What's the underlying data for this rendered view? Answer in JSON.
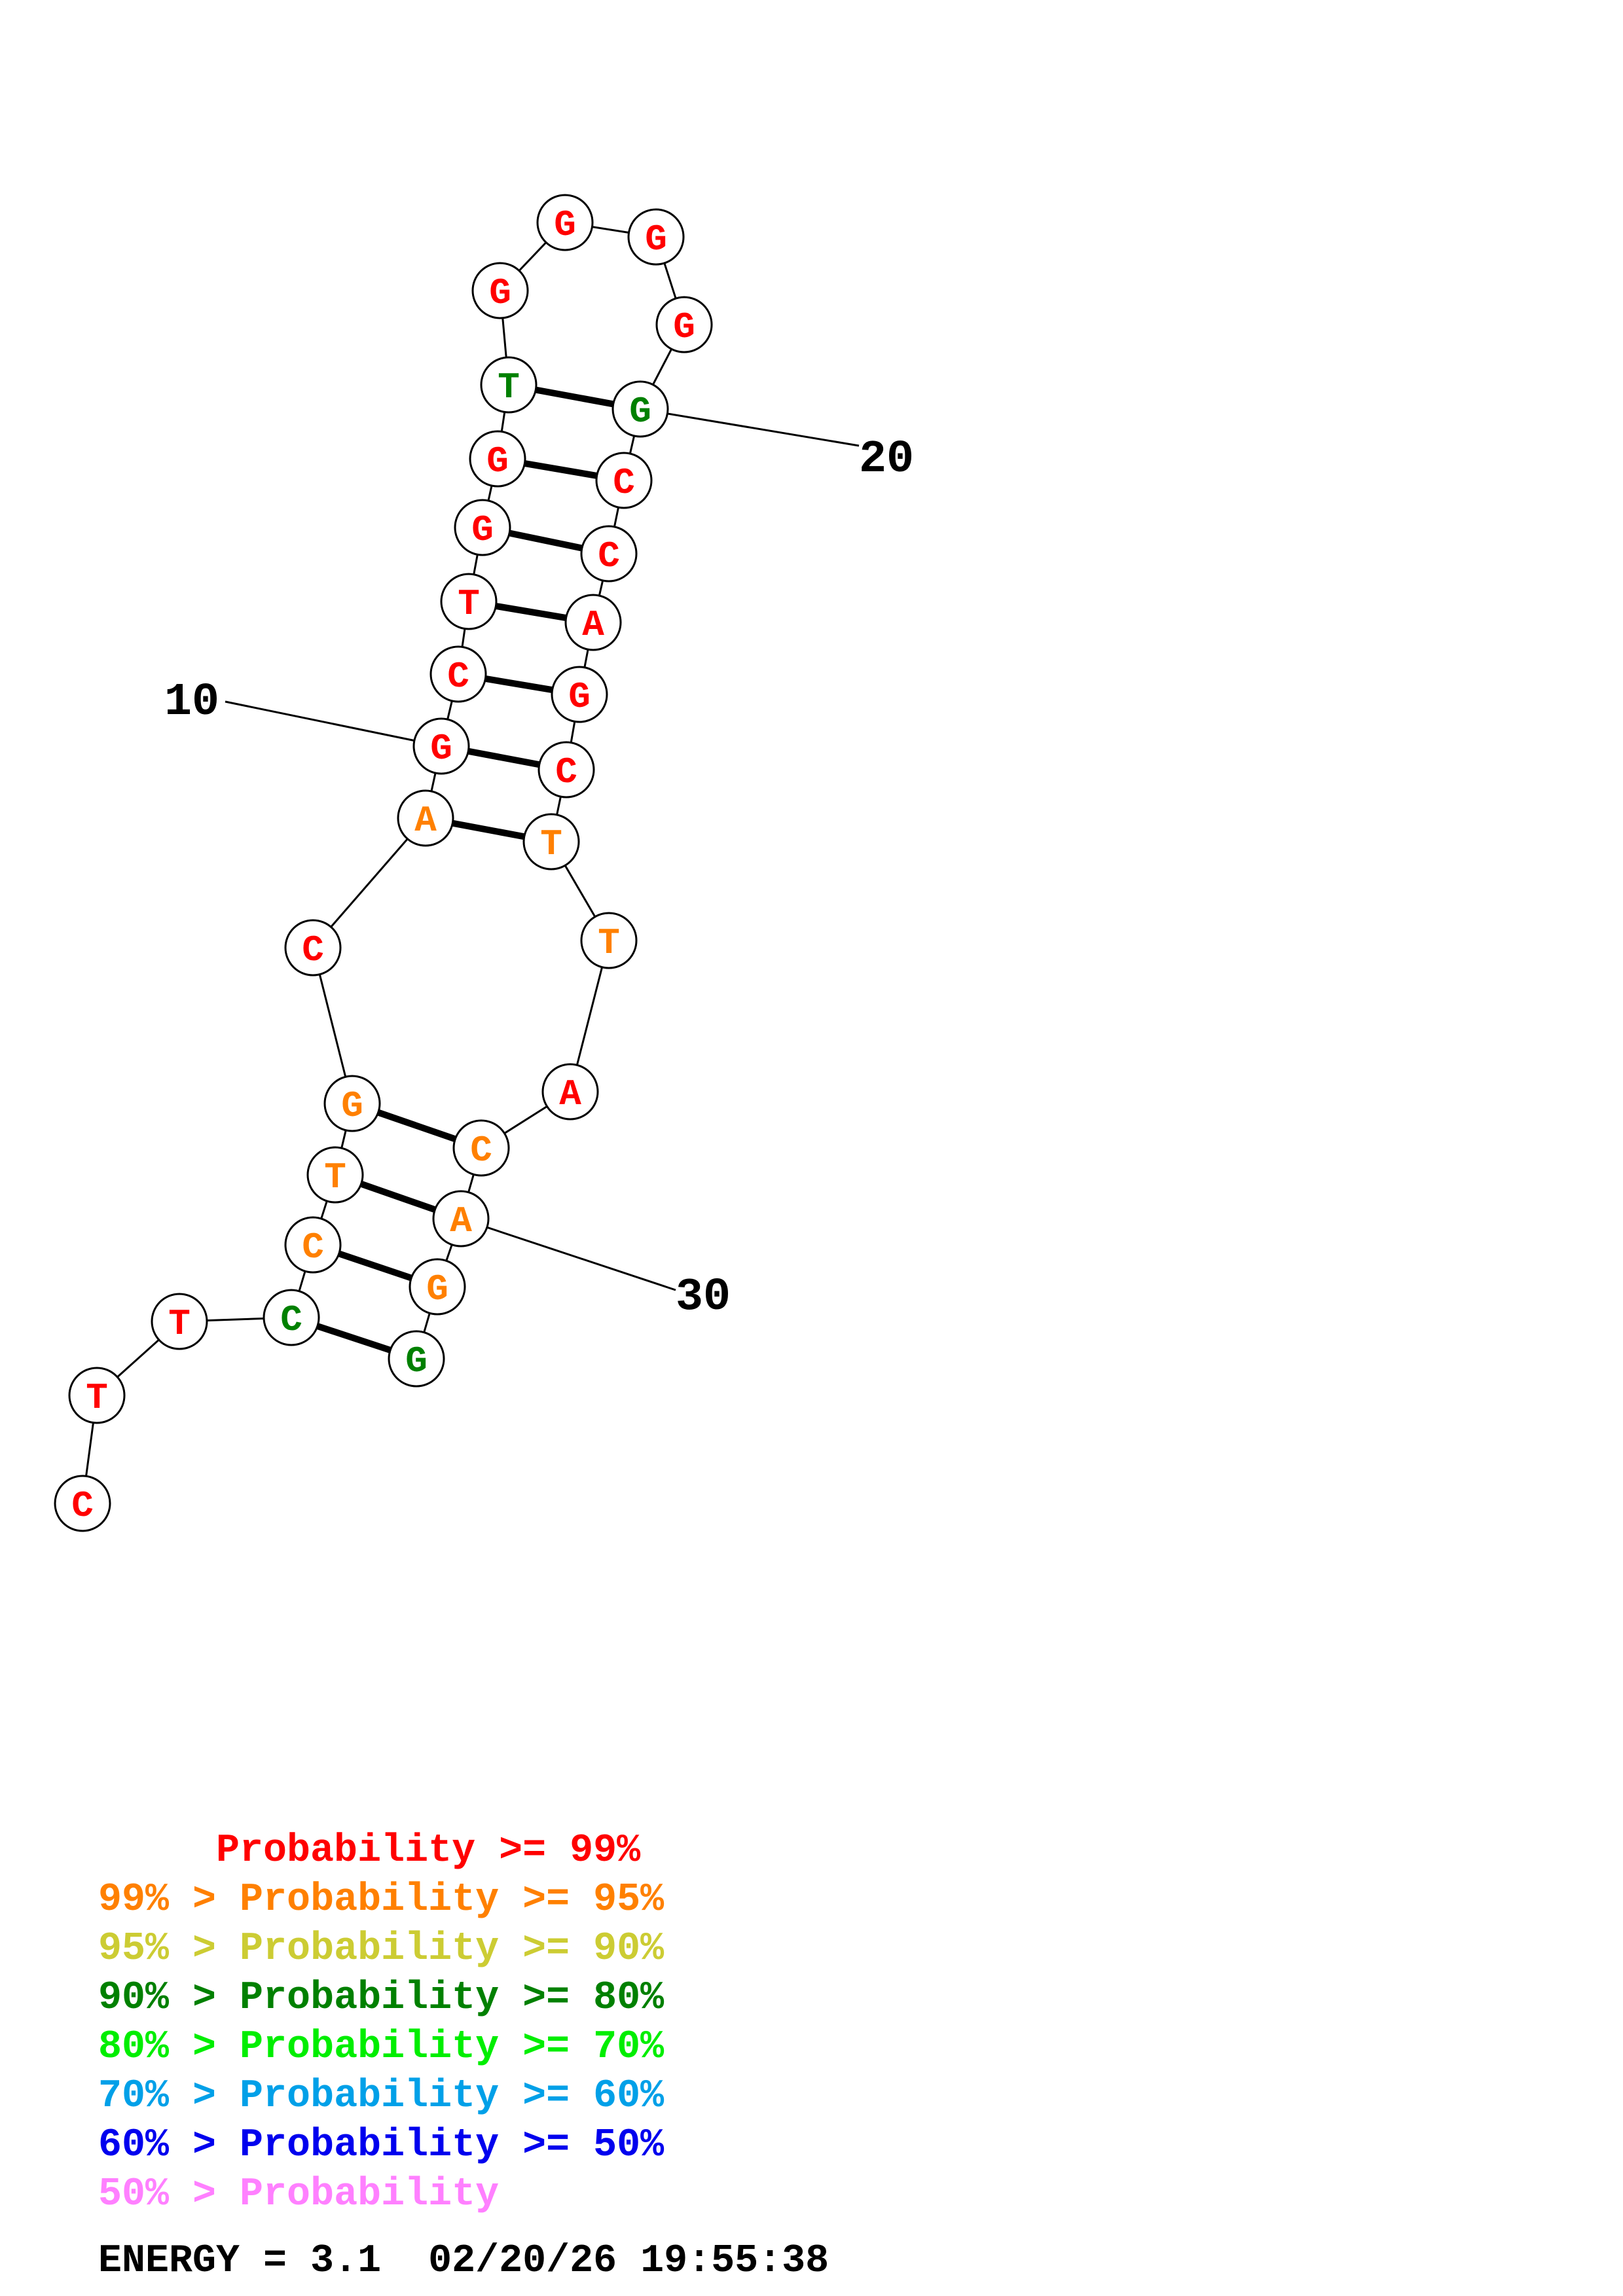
{
  "structure": {
    "nucleotides": [
      {
        "letter": "C",
        "color": "#ff0000"
      },
      {
        "letter": "T",
        "color": "#ff0000"
      },
      {
        "letter": "T",
        "color": "#ff0000"
      },
      {
        "letter": "C",
        "color": "#008000"
      },
      {
        "letter": "C",
        "color": "#ff8000"
      },
      {
        "letter": "T",
        "color": "#ff8000"
      },
      {
        "letter": "G",
        "color": "#ff8000"
      },
      {
        "letter": "C",
        "color": "#ff0000"
      },
      {
        "letter": "A",
        "color": "#ff8000"
      },
      {
        "letter": "G",
        "color": "#ff0000"
      },
      {
        "letter": "C",
        "color": "#ff0000"
      },
      {
        "letter": "T",
        "color": "#ff0000"
      },
      {
        "letter": "G",
        "color": "#ff0000"
      },
      {
        "letter": "G",
        "color": "#ff0000"
      },
      {
        "letter": "T",
        "color": "#008000"
      },
      {
        "letter": "G",
        "color": "#ff0000"
      },
      {
        "letter": "G",
        "color": "#ff0000"
      },
      {
        "letter": "G",
        "color": "#ff0000"
      },
      {
        "letter": "G",
        "color": "#ff0000"
      },
      {
        "letter": "G",
        "color": "#008000"
      },
      {
        "letter": "C",
        "color": "#ff0000"
      },
      {
        "letter": "C",
        "color": "#ff0000"
      },
      {
        "letter": "A",
        "color": "#ff0000"
      },
      {
        "letter": "G",
        "color": "#ff0000"
      },
      {
        "letter": "C",
        "color": "#ff0000"
      },
      {
        "letter": "T",
        "color": "#ff8000"
      },
      {
        "letter": "T",
        "color": "#ff8000"
      },
      {
        "letter": "A",
        "color": "#ff0000"
      },
      {
        "letter": "C",
        "color": "#ff8000"
      },
      {
        "letter": "A",
        "color": "#ff8000"
      },
      {
        "letter": "G",
        "color": "#ff8000"
      },
      {
        "letter": "G",
        "color": "#008000"
      }
    ],
    "pairs": [
      [
        4,
        32
      ],
      [
        5,
        31
      ],
      [
        6,
        30
      ],
      [
        7,
        29
      ],
      [
        9,
        26
      ],
      [
        10,
        25
      ],
      [
        11,
        24
      ],
      [
        12,
        23
      ],
      [
        13,
        22
      ],
      [
        14,
        21
      ],
      [
        15,
        20
      ]
    ],
    "position_labels": [
      {
        "text": "10",
        "index": 10
      },
      {
        "text": "20",
        "index": 20
      },
      {
        "text": "30",
        "index": 30
      }
    ]
  },
  "legend": [
    {
      "prefix": "     ",
      "label": "Probability >= 99%",
      "color": "#ff0000"
    },
    {
      "prefix": "99% > ",
      "label": "Probability >= 95%",
      "color": "#ff8000"
    },
    {
      "prefix": "95% > ",
      "label": "Probability >= 90%",
      "color": "#cccc33"
    },
    {
      "prefix": "90% > ",
      "label": "Probability >= 80%",
      "color": "#008000"
    },
    {
      "prefix": "80% > ",
      "label": "Probability >= 70%",
      "color": "#00ee00"
    },
    {
      "prefix": "70% > ",
      "label": "Probability >= 60%",
      "color": "#00a0e8"
    },
    {
      "prefix": "60% > ",
      "label": "Probability >= 50%",
      "color": "#0000ee"
    },
    {
      "prefix": "50% > ",
      "label": "Probability",
      "color": "#ff80ff"
    }
  ],
  "energy": {
    "text": "ENERGY = 3.1  02/20/26 19:55:38"
  }
}
